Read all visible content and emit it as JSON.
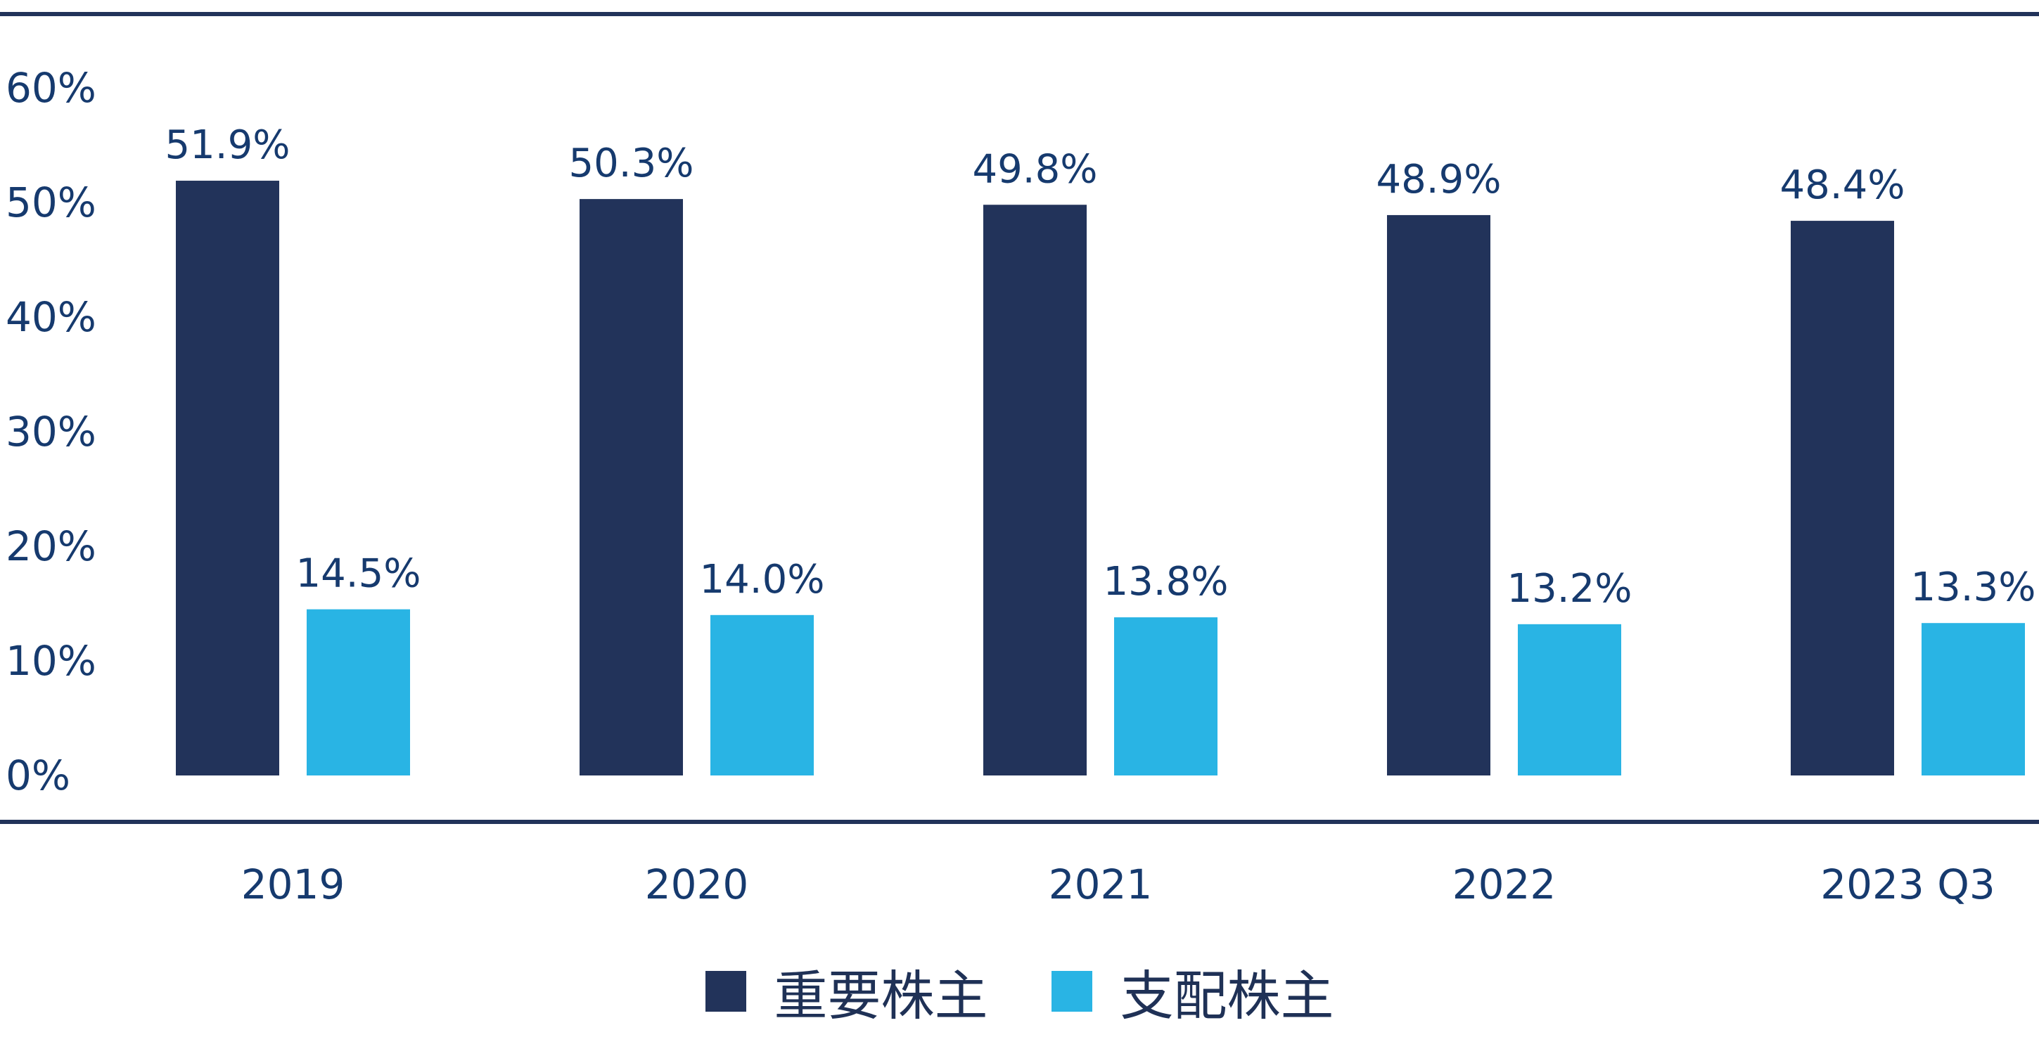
{
  "chart_data": {
    "type": "bar",
    "categories": [
      "2019",
      "2020",
      "2021",
      "2022",
      "2023 Q3"
    ],
    "series": [
      {
        "name": "重要株主",
        "color": "#22335a",
        "values": [
          51.9,
          50.3,
          49.8,
          48.9,
          48.4
        ],
        "labels": [
          "51.9%",
          "50.3%",
          "49.8%",
          "48.9%",
          "48.4%"
        ]
      },
      {
        "name": "支配株主",
        "color": "#29b4e4",
        "values": [
          14.5,
          14.0,
          13.8,
          13.2,
          13.3
        ],
        "labels": [
          "14.5%",
          "14.0%",
          "13.8%",
          "13.2%",
          "13.3%"
        ]
      }
    ],
    "ylim": [
      0,
      60
    ],
    "yticks": [
      0,
      10,
      20,
      30,
      40,
      50,
      60
    ],
    "ytick_labels": [
      "0%",
      "10%",
      "20%",
      "30%",
      "40%",
      "50%",
      "60%"
    ],
    "title": "",
    "xlabel": "",
    "ylabel": "",
    "grid": false,
    "legend_position": "bottom-center",
    "frame_color": "#22335a"
  }
}
